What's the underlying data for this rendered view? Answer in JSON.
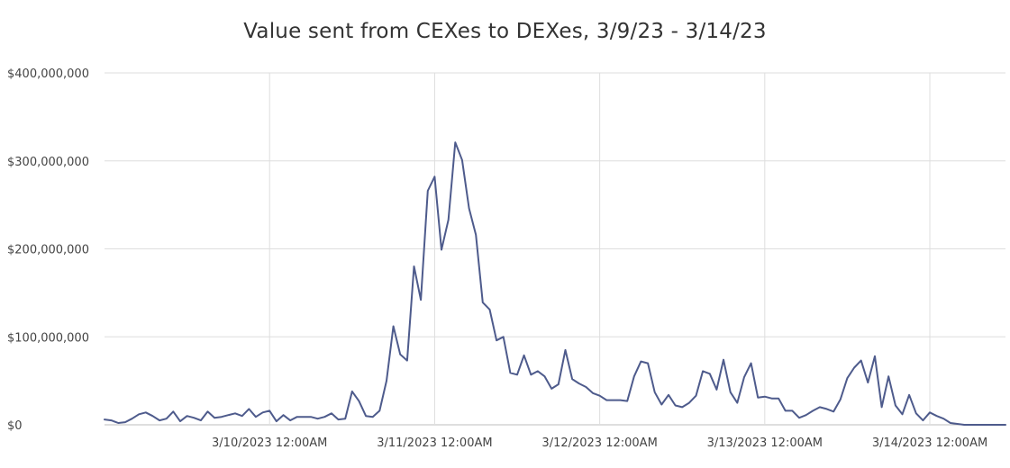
{
  "chart_data": {
    "type": "line",
    "title": "Value sent from CEXes to DEXes, 3/9/23 - 3/14/23",
    "xlabel": "",
    "ylabel": "",
    "ylim": [
      0,
      400000000
    ],
    "y_ticks": [
      0,
      100000000,
      200000000,
      300000000,
      400000000
    ],
    "y_tick_labels": [
      "$0",
      "$100,000,000",
      "$200,000,000",
      "$300,000,000",
      "$400,000,000"
    ],
    "x_ticks": [
      24,
      48,
      72,
      96,
      120
    ],
    "x_tick_labels": [
      "3/10/2023 12:00AM",
      "3/11/2023 12:00AM",
      "3/12/2023 12:00AM",
      "3/13/2023 12:00AM",
      "3/14/2023 12:00AM"
    ],
    "xlim": [
      0,
      131
    ],
    "grid": true,
    "line_color": "#4e5b8c",
    "series": [
      {
        "values": [
          6000000,
          5000000,
          2000000,
          3000000,
          7000000,
          12000000,
          14000000,
          10000000,
          5000000,
          7000000,
          15000000,
          4000000,
          10000000,
          8000000,
          5000000,
          15000000,
          8000000,
          9000000,
          11000000,
          13000000,
          10000000,
          18000000,
          9000000,
          14000000,
          16000000,
          4000000,
          11000000,
          5000000,
          9000000,
          9000000,
          9000000,
          7000000,
          9000000,
          13000000,
          6000000,
          7000000,
          38000000,
          27000000,
          10000000,
          9000000,
          16000000,
          50000000,
          112000000,
          80000000,
          73000000,
          180000000,
          142000000,
          266000000,
          282000000,
          199000000,
          233000000,
          321000000,
          301000000,
          246000000,
          216000000,
          139000000,
          131000000,
          96000000,
          100000000,
          59000000,
          57000000,
          79000000,
          57000000,
          61000000,
          55000000,
          41000000,
          46000000,
          85000000,
          52000000,
          47000000,
          43000000,
          36000000,
          33000000,
          28000000,
          28000000,
          28000000,
          27000000,
          55000000,
          72000000,
          70000000,
          37000000,
          23000000,
          34000000,
          22000000,
          20000000,
          25000000,
          33000000,
          61000000,
          58000000,
          40000000,
          74000000,
          37000000,
          25000000,
          54000000,
          70000000,
          31000000,
          32000000,
          30000000,
          30000000,
          16000000,
          16000000,
          8000000,
          11000000,
          16000000,
          20000000,
          18000000,
          15000000,
          29000000,
          53000000,
          65000000,
          73000000,
          48000000,
          78000000,
          20000000,
          55000000,
          22000000,
          12000000,
          34000000,
          13000000,
          5000000,
          14000000,
          10000000,
          7000000,
          2000000,
          1000000,
          0,
          0,
          0,
          0,
          0,
          0,
          0
        ]
      }
    ]
  }
}
